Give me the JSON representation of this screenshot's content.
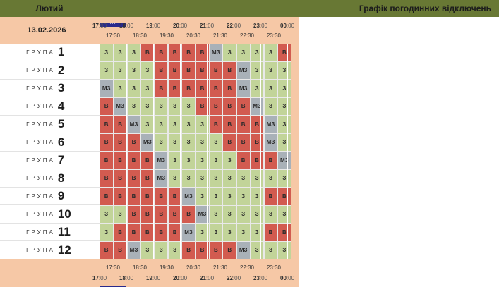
{
  "header": {
    "month": "Лютий",
    "title": "Графік погодинних відключень"
  },
  "date": "13.02.2026",
  "marker_text": "***",
  "hours": [
    {
      "hour": "17",
      "minutes": ":00",
      "half": "17:30"
    },
    {
      "hour": "18",
      "minutes": ":00",
      "half": "18:30"
    },
    {
      "hour": "19",
      "minutes": ":00",
      "half": "19:30"
    },
    {
      "hour": "20",
      "minutes": ":00",
      "half": "20:30"
    },
    {
      "hour": "21",
      "minutes": ":00",
      "half": "21:30"
    },
    {
      "hour": "22",
      "minutes": ":00",
      "half": "22:30"
    },
    {
      "hour": "23",
      "minutes": ":00",
      "half": "23:30"
    },
    {
      "hour": "00",
      "minutes": ":00",
      "half": ""
    }
  ],
  "group_label": "ГРУПА",
  "legend": {
    "З": "#c2d499",
    "В": "#d25b50",
    "МЗ": "#a9b1b8"
  },
  "groups": [
    {
      "number": "1",
      "cells": [
        "З",
        "З",
        "З",
        "В",
        "В",
        "В",
        "В",
        "В",
        "МЗ",
        "З",
        "З",
        "З",
        "З",
        "В"
      ]
    },
    {
      "number": "2",
      "cells": [
        "З",
        "З",
        "З",
        "З",
        "В",
        "В",
        "В",
        "В",
        "В",
        "В",
        "МЗ",
        "З",
        "З",
        "З"
      ]
    },
    {
      "number": "3",
      "cells": [
        "МЗ",
        "З",
        "З",
        "З",
        "В",
        "В",
        "В",
        "В",
        "В",
        "В",
        "МЗ",
        "З",
        "З",
        "З"
      ]
    },
    {
      "number": "4",
      "cells": [
        "В",
        "МЗ",
        "З",
        "З",
        "З",
        "З",
        "З",
        "В",
        "В",
        "В",
        "В",
        "МЗ",
        "З",
        "З"
      ]
    },
    {
      "number": "5",
      "cells": [
        "В",
        "В",
        "МЗ",
        "З",
        "З",
        "З",
        "З",
        "З",
        "В",
        "В",
        "В",
        "В",
        "МЗ",
        "З"
      ]
    },
    {
      "number": "6",
      "cells": [
        "В",
        "В",
        "В",
        "МЗ",
        "З",
        "З",
        "З",
        "З",
        "З",
        "В",
        "В",
        "В",
        "МЗ",
        "З"
      ]
    },
    {
      "number": "7",
      "cells": [
        "В",
        "В",
        "В",
        "В",
        "МЗ",
        "З",
        "З",
        "З",
        "З",
        "З",
        "В",
        "В",
        "В",
        "МЗ"
      ]
    },
    {
      "number": "8",
      "cells": [
        "В",
        "В",
        "В",
        "В",
        "МЗ",
        "З",
        "З",
        "З",
        "З",
        "З",
        "З",
        "З",
        "З",
        "З"
      ]
    },
    {
      "number": "9",
      "cells": [
        "В",
        "В",
        "В",
        "В",
        "В",
        "В",
        "МЗ",
        "З",
        "З",
        "З",
        "З",
        "З",
        "В",
        "В"
      ]
    },
    {
      "number": "10",
      "cells": [
        "З",
        "З",
        "В",
        "В",
        "В",
        "В",
        "В",
        "МЗ",
        "З",
        "З",
        "З",
        "З",
        "З",
        "З"
      ]
    },
    {
      "number": "11",
      "cells": [
        "З",
        "В",
        "В",
        "В",
        "В",
        "В",
        "МЗ",
        "З",
        "З",
        "З",
        "З",
        "З",
        "В",
        "В"
      ]
    },
    {
      "number": "12",
      "cells": [
        "В",
        "В",
        "МЗ",
        "З",
        "З",
        "З",
        "В",
        "В",
        "В",
        "В",
        "МЗ",
        "З",
        "З",
        "З"
      ]
    }
  ]
}
